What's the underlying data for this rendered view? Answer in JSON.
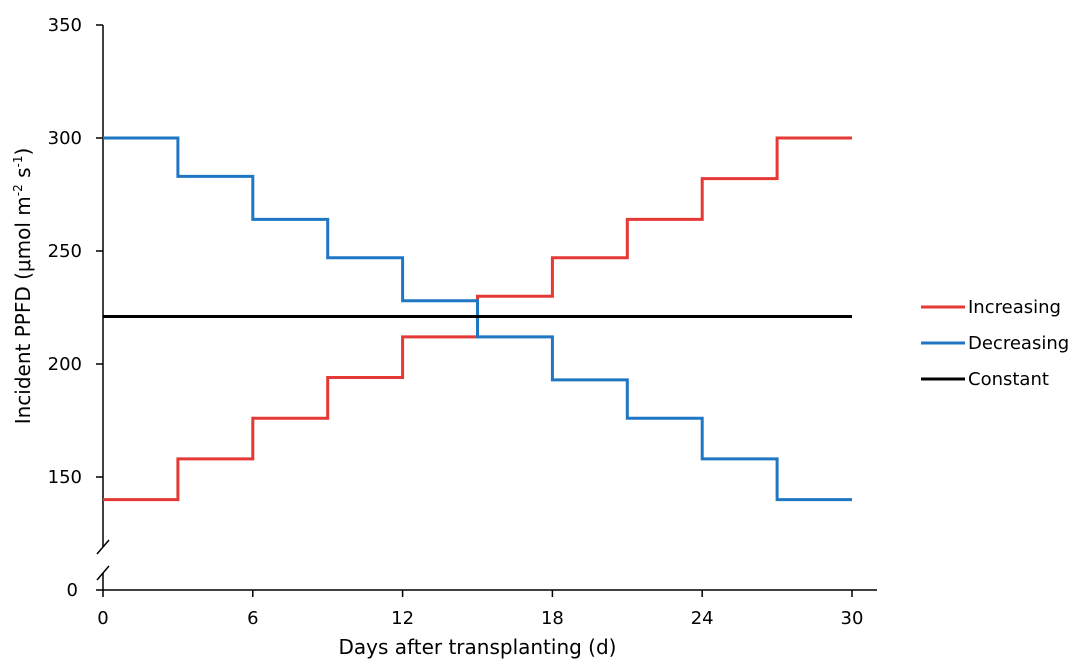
{
  "chart_data": {
    "type": "line",
    "step": true,
    "xlabel": "Days after transplanting (d)",
    "ylabel": {
      "prefix": "Incident PPFD (μmol m",
      "sup1": "-2",
      "middle": " s",
      "sup2": "-1",
      "suffix": ")"
    },
    "xlim": [
      0,
      30
    ],
    "ylim": [
      120,
      350
    ],
    "x_ticks": [
      0,
      6,
      12,
      18,
      24,
      30
    ],
    "y_ticks": [
      150,
      200,
      250,
      300,
      350
    ],
    "y_zero_label": "0",
    "axis_break": true,
    "legend_position": "right",
    "series": [
      {
        "name": "Increasing",
        "color": "#e53935",
        "x": [
          0,
          3,
          6,
          9,
          12,
          15,
          18,
          21,
          24,
          27,
          30
        ],
        "values": [
          140,
          158,
          176,
          194,
          212,
          230,
          247,
          264,
          282,
          300,
          300
        ]
      },
      {
        "name": "Decreasing",
        "color": "#1f77c4",
        "x": [
          0,
          3,
          6,
          9,
          12,
          15,
          18,
          21,
          24,
          27,
          30
        ],
        "values": [
          300,
          283,
          264,
          247,
          228,
          212,
          193,
          176,
          158,
          140,
          140
        ]
      },
      {
        "name": "Constant",
        "color": "#000000",
        "x": [
          0,
          3,
          6,
          9,
          12,
          15,
          18,
          21,
          24,
          27,
          30
        ],
        "values": [
          221,
          221,
          221,
          221,
          221,
          221,
          221,
          221,
          221,
          221,
          221
        ]
      }
    ]
  }
}
